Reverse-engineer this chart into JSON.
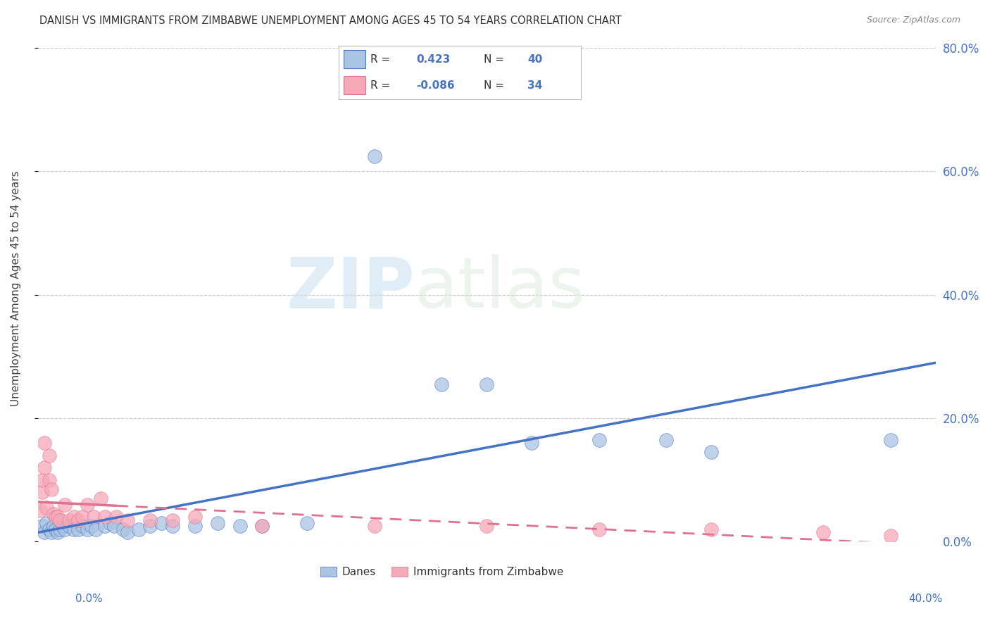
{
  "title": "DANISH VS IMMIGRANTS FROM ZIMBABWE UNEMPLOYMENT AMONG AGES 45 TO 54 YEARS CORRELATION CHART",
  "source": "Source: ZipAtlas.com",
  "ylabel": "Unemployment Among Ages 45 to 54 years",
  "legend_label1": "Danes",
  "legend_label2": "Immigrants from Zimbabwe",
  "r1": 0.423,
  "n1": 40,
  "r2": -0.086,
  "n2": 34,
  "color1": "#aac4e2",
  "color2": "#f5a8b8",
  "line_color1": "#4472c4",
  "line_color2": "#e07090",
  "watermark_zip": "ZIP",
  "watermark_atlas": "atlas",
  "xlim": [
    0.0,
    0.4
  ],
  "ylim": [
    0.0,
    0.82
  ],
  "danes_x": [
    0.002,
    0.003,
    0.004,
    0.005,
    0.006,
    0.007,
    0.008,
    0.009,
    0.01,
    0.011,
    0.012,
    0.014,
    0.016,
    0.018,
    0.02,
    0.022,
    0.024,
    0.026,
    0.03,
    0.032,
    0.034,
    0.038,
    0.04,
    0.045,
    0.05,
    0.055,
    0.06,
    0.07,
    0.08,
    0.09,
    0.1,
    0.12,
    0.15,
    0.18,
    0.2,
    0.22,
    0.25,
    0.28,
    0.3,
    0.38
  ],
  "danes_y": [
    0.025,
    0.015,
    0.03,
    0.02,
    0.015,
    0.025,
    0.02,
    0.015,
    0.02,
    0.025,
    0.02,
    0.025,
    0.02,
    0.02,
    0.025,
    0.02,
    0.025,
    0.02,
    0.025,
    0.03,
    0.025,
    0.02,
    0.015,
    0.02,
    0.025,
    0.03,
    0.025,
    0.025,
    0.03,
    0.025,
    0.025,
    0.03,
    0.625,
    0.255,
    0.255,
    0.16,
    0.165,
    0.165,
    0.145,
    0.165
  ],
  "zimb_x": [
    0.001,
    0.002,
    0.002,
    0.003,
    0.003,
    0.004,
    0.005,
    0.005,
    0.006,
    0.007,
    0.008,
    0.009,
    0.01,
    0.012,
    0.014,
    0.016,
    0.018,
    0.02,
    0.022,
    0.025,
    0.028,
    0.03,
    0.035,
    0.04,
    0.05,
    0.06,
    0.07,
    0.1,
    0.15,
    0.2,
    0.25,
    0.3,
    0.35,
    0.38
  ],
  "zimb_y": [
    0.05,
    0.08,
    0.1,
    0.12,
    0.16,
    0.055,
    0.1,
    0.14,
    0.085,
    0.045,
    0.04,
    0.04,
    0.035,
    0.06,
    0.035,
    0.04,
    0.035,
    0.04,
    0.06,
    0.04,
    0.07,
    0.04,
    0.04,
    0.035,
    0.035,
    0.035,
    0.04,
    0.025,
    0.025,
    0.025,
    0.02,
    0.02,
    0.015,
    0.01
  ],
  "yticks": [
    0.0,
    0.2,
    0.4,
    0.6,
    0.8
  ],
  "ytick_labels": [
    "0.0%",
    "20.0%",
    "40.0%",
    "60.0%",
    "80.0%"
  ],
  "xtick_left_label": "0.0%",
  "xtick_right_label": "40.0%",
  "grid_color": "#cccccc",
  "axis_color": "#4472c4",
  "background_color": "#ffffff",
  "title_color": "#333333",
  "source_color": "#888888"
}
